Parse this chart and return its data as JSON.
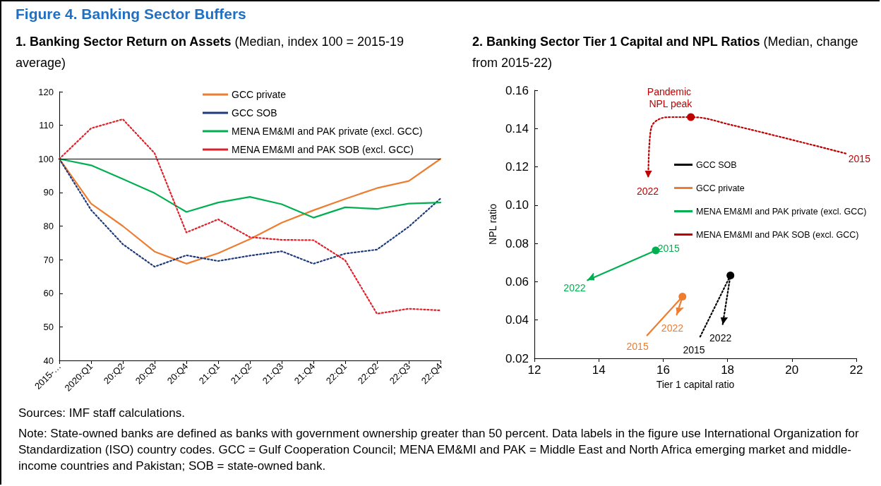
{
  "chart_data": [
    {
      "type": "line",
      "title": "Figure 4. Banking Sector Buffers",
      "subtitle": "1. Banking Sector Return on Assets (Median, index 100 = 2015-19 average)",
      "categories": [
        "2015-…",
        "2020:Q1",
        "20:Q2",
        "20:Q3",
        "20:Q4",
        "21:Q1",
        "21:Q2",
        "21:Q3",
        "21:Q4",
        "22:Q1",
        "22:Q2",
        "22:Q3",
        "22:Q4"
      ],
      "series": [
        {
          "name": "GCC private",
          "color": "#ed7d31",
          "line_style": "solid",
          "values": [
            100,
            86.7,
            80,
            72.4,
            68.8,
            71.9,
            76.1,
            81,
            84.7,
            88.1,
            91.3,
            93.4,
            100
          ]
        },
        {
          "name": "GCC SOB",
          "color": "#1f3a7a",
          "line_style": "dotted",
          "values": [
            100,
            84.8,
            74.6,
            67.9,
            71.3,
            69.6,
            71.2,
            72.5,
            68.8,
            71.8,
            73,
            79.8,
            88.2
          ]
        },
        {
          "name": "MENA EM&MI and PAK private (excl. GCC)",
          "color": "#00b050",
          "line_style": "solid",
          "values": [
            100,
            98.1,
            94,
            89.8,
            84.2,
            87,
            88.7,
            86.5,
            82.5,
            85.6,
            85.1,
            86.7,
            87
          ]
        },
        {
          "name": "MENA EM&MI and PAK SOB (excl. GCC)",
          "color": "#e0202a",
          "line_style": "dotted",
          "values": [
            100,
            109.1,
            111.8,
            101.7,
            78.1,
            82,
            76.7,
            75.9,
            75.8,
            69.8,
            53.9,
            55.4,
            54.9
          ]
        }
      ],
      "ylim": [
        40,
        120
      ],
      "yticks": [
        40,
        50,
        60,
        70,
        80,
        90,
        100,
        110,
        120
      ],
      "ref_lines": [
        {
          "axis": "y",
          "value": 100,
          "color": "#000000"
        }
      ],
      "legend": "top",
      "grid": false,
      "marker": "none",
      "annotations": [
        "Sources: IMF staff calculations.",
        "Note: State-owned banks are defined as banks with government ownership greater than 50 percent. Data labels in the figure use International Organization for Standardization (ISO) country codes. GCC = Gulf Cooperation Council; MENA EM&MI and PAK = Middle East and North Africa emerging market and middle-income countries and Pakistan; SOB = state-owned bank."
      ]
    },
    {
      "type": "line",
      "title": "2. Banking Sector Tier 1 Capital and NPL Ratios (Median, change from 2015-22)",
      "xlabel": "Tier 1 capital ratio",
      "ylabel": "NPL ratio",
      "series": [
        {
          "name": "GCC SOB",
          "color": "#000000",
          "line_style": "dotted",
          "x": [
            17.15,
            18.09,
            17.85
          ],
          "values": [
            0.0313,
            0.0633,
            0.0378
          ]
        },
        {
          "name": "GCC private",
          "color": "#ed7d31",
          "line_style": "solid",
          "x": [
            15.5,
            16.6,
            16.42
          ],
          "values": [
            0.032,
            0.0522,
            0.0428
          ]
        },
        {
          "name": "MENA EM&MI and PAK private (excl. GCC)",
          "color": "#00b050",
          "line_style": "solid",
          "x": [
            15.77,
            13.65
          ],
          "values": [
            0.0764,
            0.0608
          ]
        },
        {
          "name": "MENA EM&MI and PAK SOB (excl. GCC)",
          "color": "#c00000",
          "line_style": "dotted",
          "x": [
            21.67,
            18.09,
            16.86,
            16.23,
            15.75,
            15.6,
            15.54
          ],
          "values": [
            0.127,
            0.142,
            0.146,
            0.146,
            0.1436,
            0.1374,
            0.1145
          ]
        }
      ],
      "xlim": [
        12,
        22
      ],
      "xticks": [
        12,
        14,
        16,
        18,
        20,
        22
      ],
      "ylim": [
        0.02,
        0.16
      ],
      "yticks": [
        {
          "value": 0.02,
          "label": "0.02"
        },
        {
          "value": 0.04,
          "label": "0.04"
        },
        {
          "value": 0.06,
          "label": "0.06"
        },
        {
          "value": 0.08,
          "label": "0.08"
        },
        {
          "value": 0.1,
          "label": "0.10"
        },
        {
          "value": 0.12,
          "label": "0.12"
        },
        {
          "value": 0.14,
          "label": "0.14"
        },
        {
          "value": 0.16,
          "label": "0.16"
        }
      ],
      "legend": "right",
      "grid": false,
      "annotations": [
        {
          "text": "Pandemic NPL peak",
          "x": 16.23,
          "y": 0.146
        },
        {
          "text": "2015",
          "x": 21.67,
          "y": 0.127
        },
        {
          "text": "2022",
          "x": 15.54,
          "y": 0.1145
        },
        {
          "text": "2015",
          "x": 15.77,
          "y": 0.0764
        },
        {
          "text": "2022",
          "x": 13.65,
          "y": 0.0608
        },
        {
          "text": "2015",
          "x": 15.5,
          "y": 0.032
        },
        {
          "text": "2022",
          "x": 16.42,
          "y": 0.0428
        },
        {
          "text": "2015",
          "x": 17.15,
          "y": 0.0313
        },
        {
          "text": "2022",
          "x": 17.85,
          "y": 0.0378
        }
      ]
    }
  ]
}
